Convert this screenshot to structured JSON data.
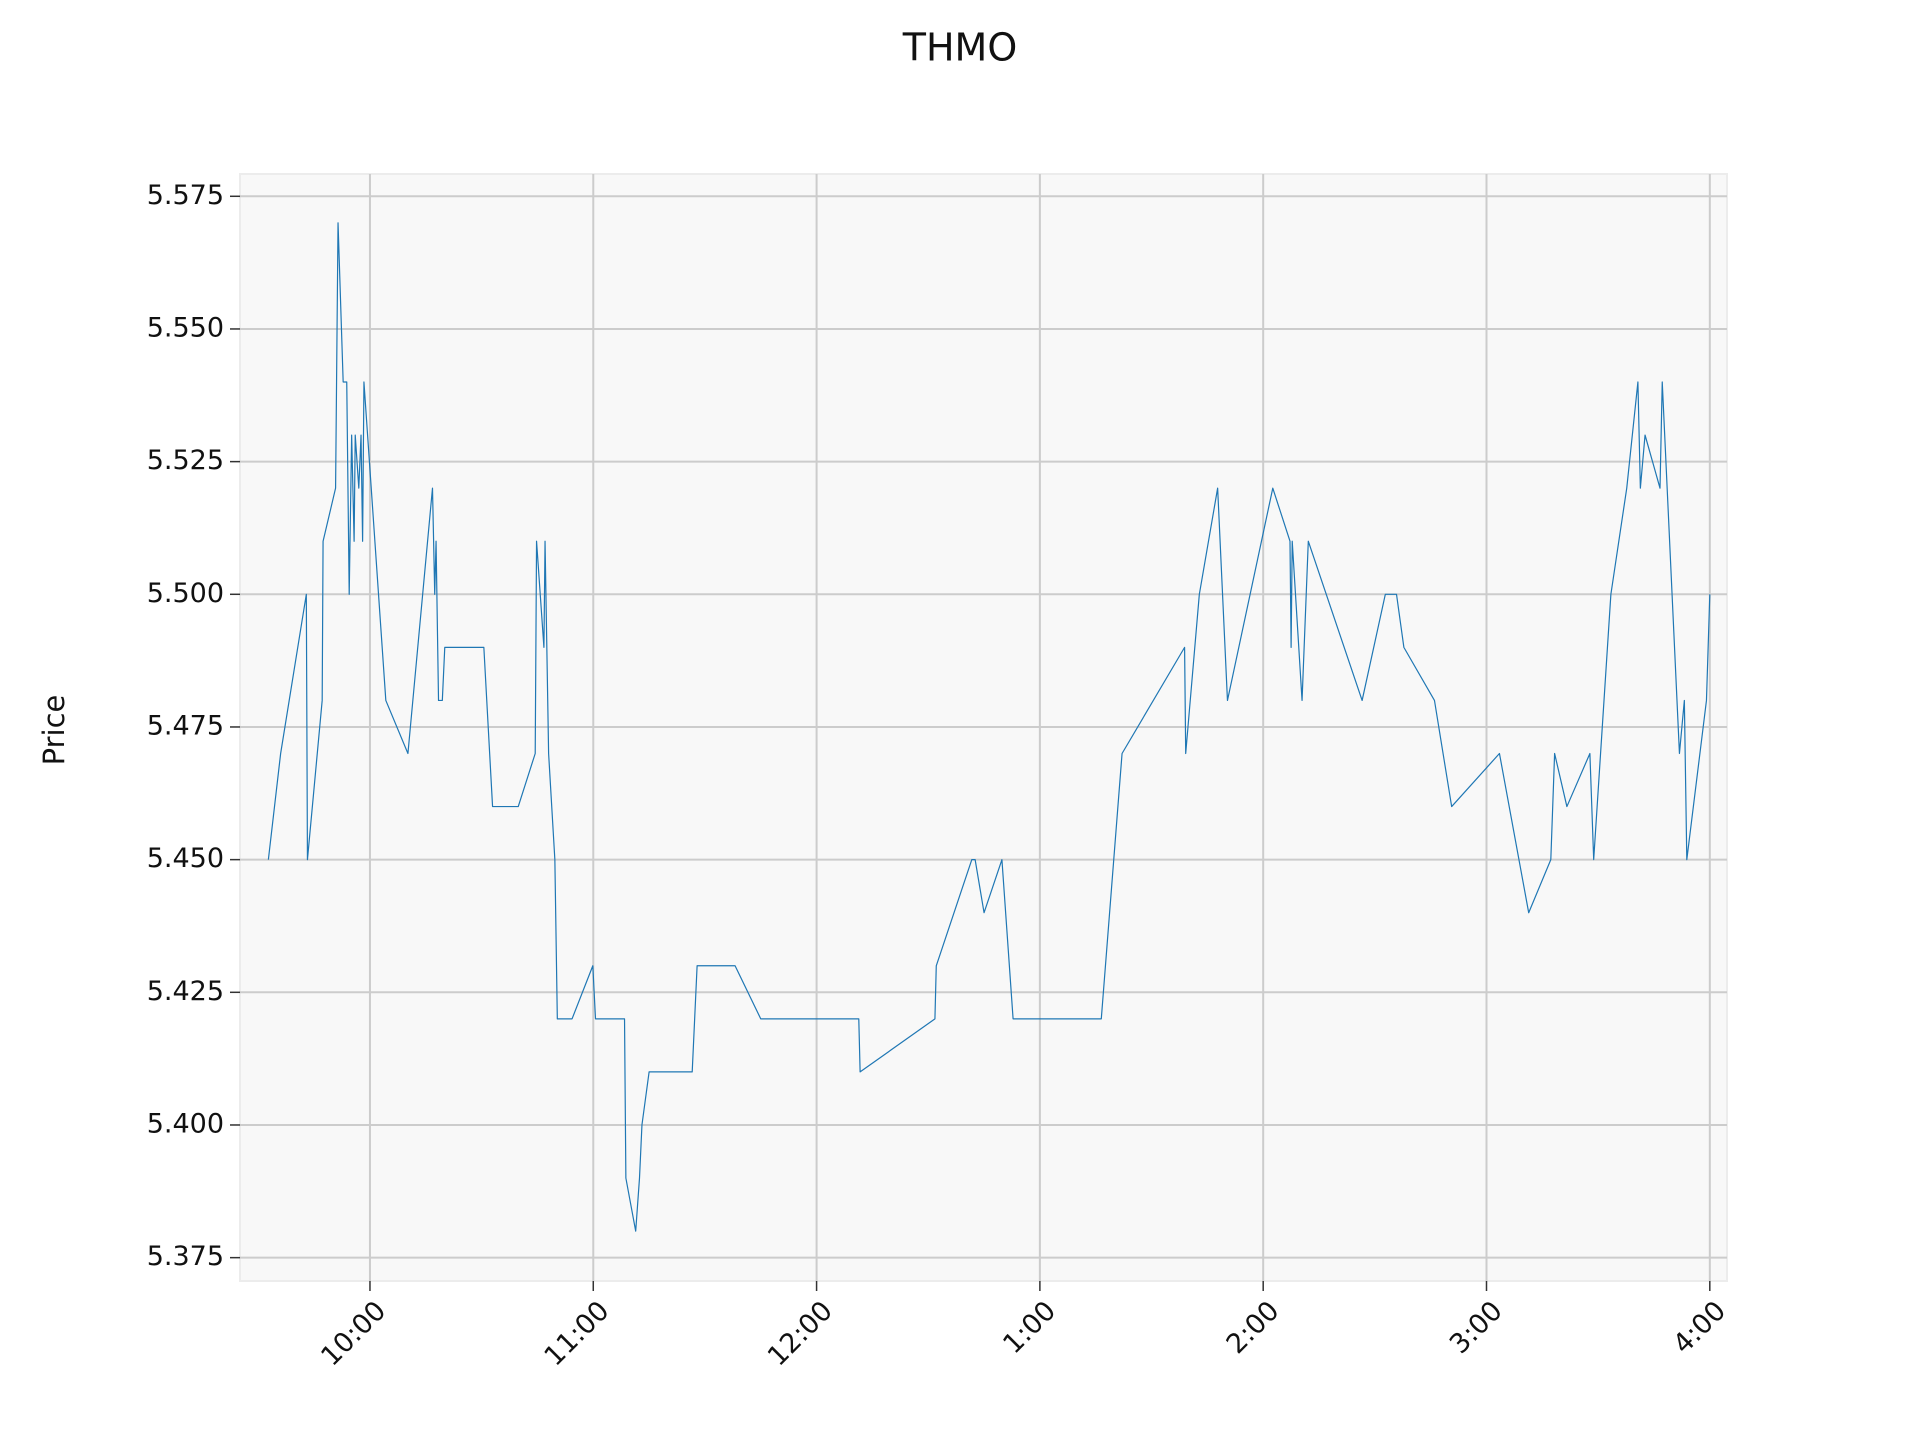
{
  "chart_data": {
    "type": "line",
    "title": "THMO",
    "y_label": "Price",
    "x": [
      9.545,
      9.6,
      9.715,
      9.72,
      9.786,
      9.79,
      9.846,
      9.857,
      9.88,
      9.896,
      9.907,
      9.918,
      9.929,
      9.934,
      9.95,
      9.96,
      9.967,
      9.973,
      10.071,
      10.17,
      10.28,
      10.29,
      10.296,
      10.307,
      10.324,
      10.335,
      10.51,
      10.549,
      10.664,
      10.74,
      10.746,
      10.779,
      10.784,
      10.8,
      10.828,
      10.839,
      10.905,
      10.998,
      11.01,
      11.14,
      11.146,
      11.19,
      11.207,
      11.218,
      11.25,
      11.443,
      11.465,
      11.635,
      11.75,
      12.189,
      12.195,
      12.53,
      12.536,
      12.695,
      12.71,
      12.75,
      12.83,
      12.88,
      13.275,
      13.368,
      13.648,
      13.653,
      13.714,
      13.796,
      13.84,
      14.043,
      14.12,
      14.125,
      14.13,
      14.174,
      14.202,
      14.443,
      14.547,
      14.597,
      14.63,
      14.767,
      14.844,
      15.058,
      15.189,
      15.288,
      15.305,
      15.36,
      15.463,
      15.48,
      15.557,
      15.628,
      15.678,
      15.689,
      15.71,
      15.777,
      15.787,
      15.864,
      15.886,
      15.897,
      15.985,
      16.0
    ],
    "series": [
      {
        "color": "#1f77b4",
        "values": [
          5.45,
          5.47,
          5.5,
          5.45,
          5.48,
          5.51,
          5.52,
          5.57,
          5.54,
          5.54,
          5.5,
          5.53,
          5.51,
          5.53,
          5.52,
          5.53,
          5.51,
          5.54,
          5.48,
          5.47,
          5.52,
          5.5,
          5.51,
          5.48,
          5.48,
          5.49,
          5.49,
          5.46,
          5.46,
          5.47,
          5.51,
          5.49,
          5.51,
          5.47,
          5.45,
          5.42,
          5.42,
          5.43,
          5.42,
          5.42,
          5.39,
          5.38,
          5.39,
          5.4,
          5.41,
          5.41,
          5.43,
          5.43,
          5.42,
          5.42,
          5.41,
          5.42,
          5.43,
          5.45,
          5.45,
          5.44,
          5.45,
          5.42,
          5.42,
          5.47,
          5.49,
          5.47,
          5.5,
          5.52,
          5.48,
          5.52,
          5.51,
          5.49,
          5.51,
          5.48,
          5.51,
          5.48,
          5.5,
          5.5,
          5.49,
          5.48,
          5.46,
          5.47,
          5.44,
          5.45,
          5.47,
          5.46,
          5.47,
          5.45,
          5.5,
          5.52,
          5.54,
          5.52,
          5.53,
          5.52,
          5.54,
          5.47,
          5.48,
          5.45,
          5.48,
          5.5
        ]
      }
    ],
    "xlim": [
      9.418,
      16.077
    ],
    "xticks": [
      {
        "value": 10,
        "label": "10:00"
      },
      {
        "value": 11,
        "label": "11:00"
      },
      {
        "value": 12,
        "label": "12:00"
      },
      {
        "value": 13,
        "label": "1:00"
      },
      {
        "value": 14,
        "label": "2:00"
      },
      {
        "value": 15,
        "label": "3:00"
      },
      {
        "value": 16,
        "label": "4:00"
      }
    ],
    "ylim": [
      5.3706,
      5.5792
    ],
    "yticks": [
      5.375,
      {
        "value": 5.4,
        "label": "5.400"
      },
      5.425,
      {
        "value": 5.45,
        "label": "5.450"
      },
      5.475,
      {
        "value": 5.5,
        "label": "5.500"
      },
      5.525,
      {
        "value": 5.55,
        "label": "5.550"
      },
      5.575
    ],
    "grid": true
  }
}
